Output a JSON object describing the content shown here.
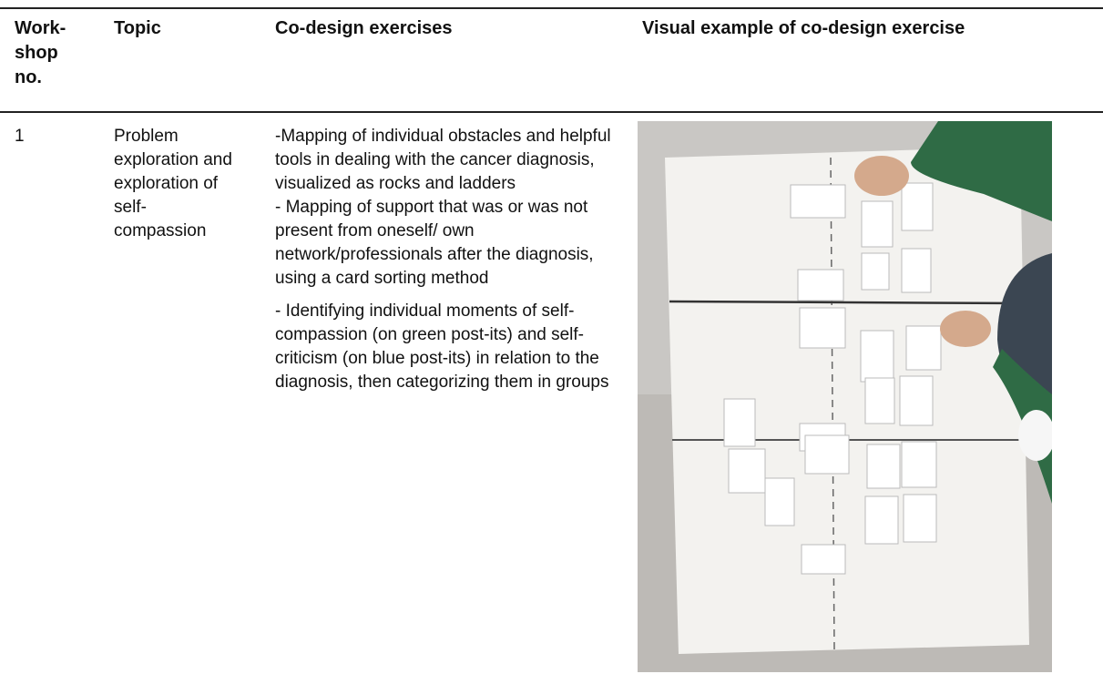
{
  "table": {
    "header": [
      "Work-shop no.",
      "Topic",
      "Co-design exercises",
      "Visual example of co-design exercise"
    ],
    "rows": [
      {
        "no": "1",
        "topic": "Problem exploration and exploration of self-compassion",
        "exercises": [
          "-Mapping of individual obstacles and helpful tools in dealing with the cancer diagnosis, visualized as rocks and ladders",
          "- Mapping of support that was or was not present from oneself/ own network/professionals after the diagnosis, using a card sorting method",
          "- Identifying individual moments of self-compassion (on green post-its) and self-criticism (on blue post-its) in relation to the diagnosis, then categorizing them in groups"
        ]
      }
    ]
  }
}
